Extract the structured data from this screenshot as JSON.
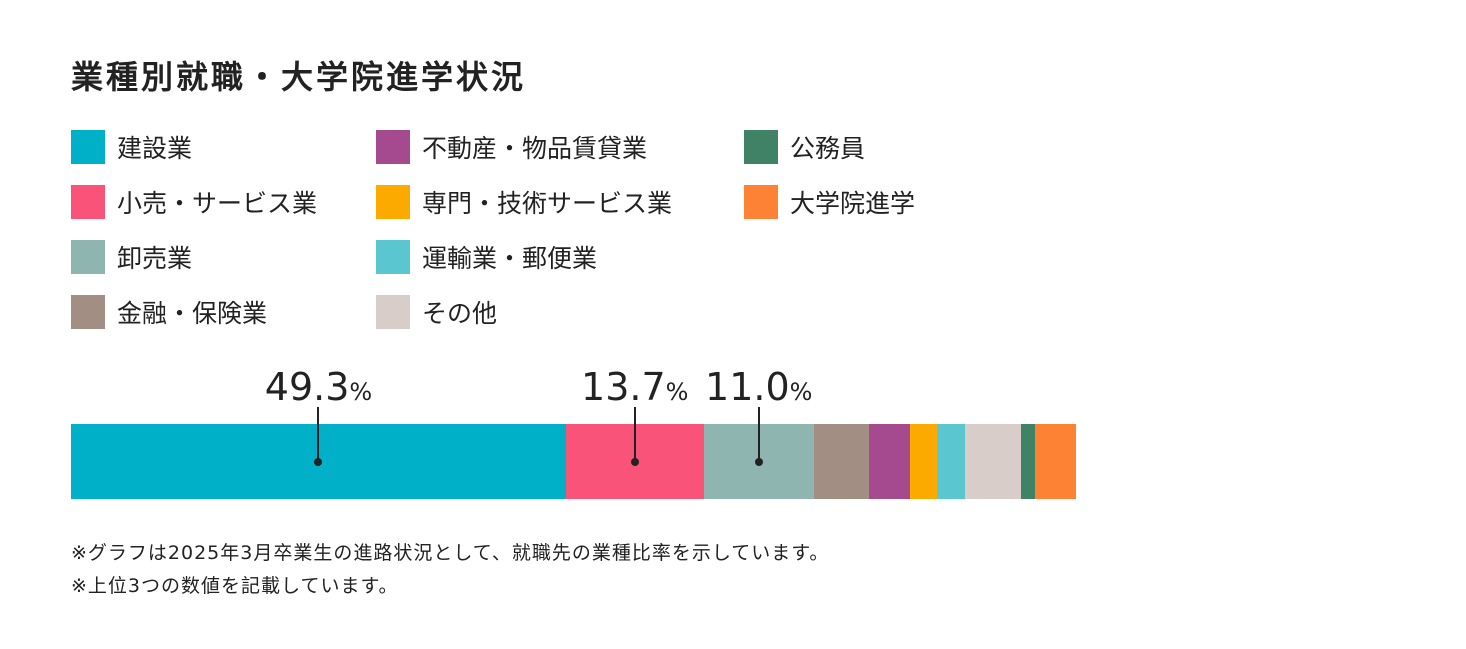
{
  "chart_data": {
    "type": "bar",
    "orientation": "horizontal-stacked-100",
    "title": "業種別就職・大学院進学状況",
    "unit": "%",
    "categories": [
      "建設業",
      "小売・サービス業",
      "卸売業",
      "金融・保険業",
      "不動産・物品賃貸業",
      "専門・技術サービス業",
      "運輸業・郵便業",
      "その他",
      "公務員",
      "大学院進学"
    ],
    "values": [
      49.3,
      13.7,
      11.0,
      5.5,
      4.1,
      2.7,
      2.7,
      5.6,
      1.4,
      4.1
    ],
    "colors": [
      "#00b0c8",
      "#f9537a",
      "#8fb5b1",
      "#a28e83",
      "#a64a90",
      "#fcaa00",
      "#5ac6d0",
      "#d8cdc8",
      "#3f8265",
      "#fe8233"
    ],
    "data_labels": [
      {
        "index": 0,
        "text": "49.3"
      },
      {
        "index": 1,
        "text": "13.7"
      },
      {
        "index": 2,
        "text": "11.0"
      }
    ],
    "percent_sign": "%",
    "legend_placement": "top-left"
  },
  "legend_order": [
    0,
    4,
    8,
    1,
    5,
    9,
    2,
    6,
    3,
    7
  ],
  "notes": [
    "※グラフは2025年3月卒業生の進路状況として、就職先の業種比率を示しています。",
    "※上位3つの数値を記載しています。"
  ]
}
